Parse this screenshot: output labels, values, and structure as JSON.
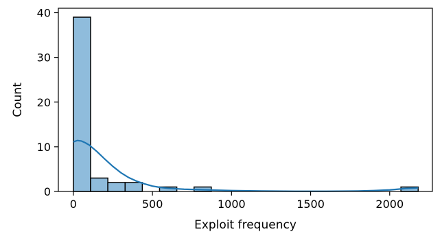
{
  "chart_data": {
    "type": "bar",
    "title": "",
    "xlabel": "Exploit frequency",
    "ylabel": "Count",
    "xlim": [
      -95,
      2270
    ],
    "ylim": [
      0,
      41
    ],
    "x_ticks": [
      0,
      500,
      1000,
      1500,
      2000
    ],
    "y_ticks": [
      0,
      10,
      20,
      30,
      40
    ],
    "grid": false,
    "bins": [
      {
        "start": 0,
        "end": 109,
        "count": 39
      },
      {
        "start": 109,
        "end": 218,
        "count": 3
      },
      {
        "start": 218,
        "end": 327,
        "count": 2
      },
      {
        "start": 327,
        "end": 436,
        "count": 2
      },
      {
        "start": 436,
        "end": 545,
        "count": 0
      },
      {
        "start": 545,
        "end": 654,
        "count": 1
      },
      {
        "start": 654,
        "end": 763,
        "count": 0
      },
      {
        "start": 763,
        "end": 872,
        "count": 1
      },
      {
        "start": 872,
        "end": 981,
        "count": 0
      },
      {
        "start": 981,
        "end": 1090,
        "count": 0
      },
      {
        "start": 1090,
        "end": 1199,
        "count": 0
      },
      {
        "start": 1199,
        "end": 1308,
        "count": 0
      },
      {
        "start": 1308,
        "end": 1417,
        "count": 0
      },
      {
        "start": 1417,
        "end": 1526,
        "count": 0
      },
      {
        "start": 1526,
        "end": 1635,
        "count": 0
      },
      {
        "start": 1635,
        "end": 1744,
        "count": 0
      },
      {
        "start": 1744,
        "end": 1853,
        "count": 0
      },
      {
        "start": 1853,
        "end": 1962,
        "count": 0
      },
      {
        "start": 1962,
        "end": 2071,
        "count": 0
      },
      {
        "start": 2071,
        "end": 2180,
        "count": 1
      }
    ],
    "kde": {
      "x": [
        0,
        25,
        50,
        75,
        100,
        150,
        200,
        250,
        300,
        350,
        400,
        450,
        500,
        550,
        600,
        700,
        800,
        900,
        1000,
        1200,
        1400,
        1600,
        1800,
        1900,
        2000,
        2050,
        2100,
        2150,
        2180
      ],
      "y": [
        11.1,
        11.4,
        11.3,
        10.9,
        10.4,
        8.9,
        7.2,
        5.6,
        4.2,
        3.1,
        2.3,
        1.7,
        1.2,
        0.9,
        0.7,
        0.5,
        0.4,
        0.3,
        0.2,
        0.1,
        0.05,
        0.05,
        0.1,
        0.2,
        0.35,
        0.5,
        0.65,
        0.75,
        0.8
      ]
    },
    "colors": {
      "bar_fill": "#8fbcdc",
      "bar_edge": "#000000",
      "kde_line": "#1f77b4"
    }
  }
}
